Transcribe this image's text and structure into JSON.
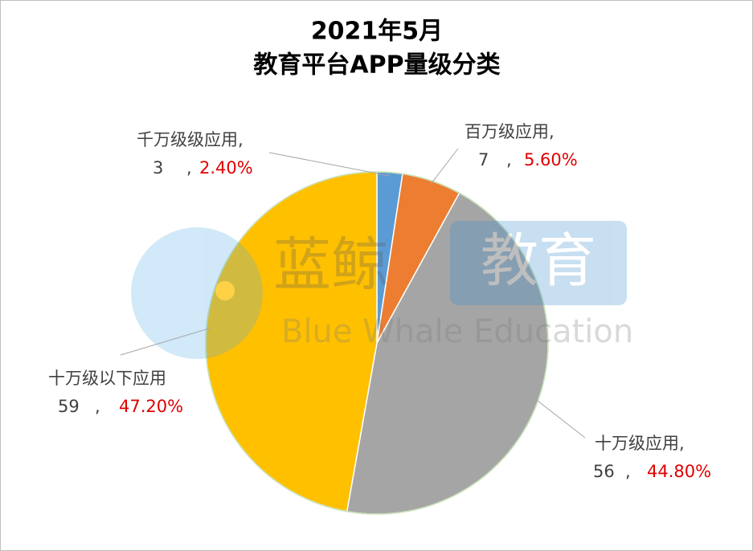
{
  "chart_data": {
    "type": "pie",
    "title": [
      "2021年5月",
      "教育平台APP量级分类"
    ],
    "categories": [
      "千万级级应用,",
      "百万级应用,",
      "十万级应用,",
      "十万级以下应用"
    ],
    "values": [
      3,
      7,
      56,
      59
    ],
    "percents": [
      2.4,
      5.6,
      44.8,
      47.2
    ],
    "percent_labels": [
      "2.40%",
      "5.60%",
      "44.80%",
      "47.20%"
    ],
    "separator": ",",
    "colors": [
      "#5b9bd5",
      "#ed7d31",
      "#a5a5a5",
      "#ffc000"
    ],
    "watermark": {
      "cn": "蓝鲸",
      "cn_box": "教育",
      "en": "Blue Whale Education"
    }
  }
}
